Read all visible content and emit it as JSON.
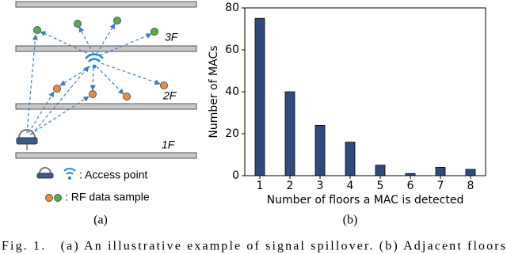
{
  "chart_data": {
    "type": "bar",
    "x_label": "Number of floors a MAC is detected",
    "y_label": "Number of MACs",
    "categories": [
      "1",
      "2",
      "3",
      "4",
      "5",
      "6",
      "7",
      "8"
    ],
    "values": [
      75,
      40,
      24,
      16,
      5,
      1,
      4,
      3
    ],
    "color": "#2f4b7c",
    "ylim": [
      0,
      80
    ],
    "yticks": [
      0,
      20,
      40,
      60,
      80
    ],
    "grid": false
  },
  "diagram": {
    "floors": [
      "3F",
      "2F",
      "1F"
    ],
    "legend": [
      ": Access point",
      ": RF data sample"
    ]
  },
  "panel_labels": [
    "(a)",
    "(b)"
  ],
  "caption": "Fig. 1.   (a) An illustrative example of signal spillover. (b) Adjacent floors"
}
